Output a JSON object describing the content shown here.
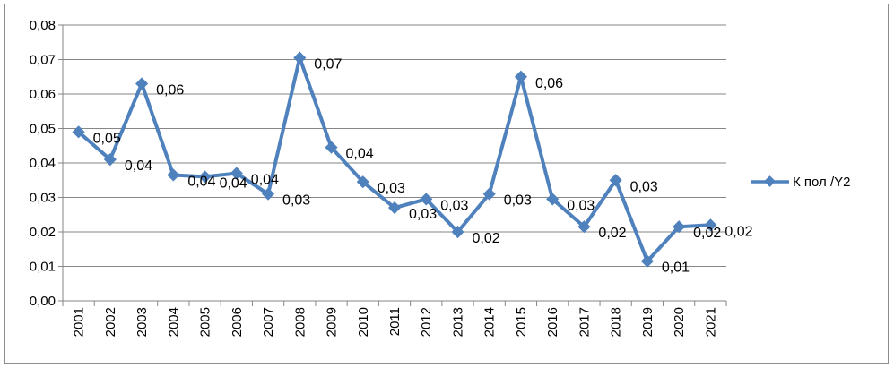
{
  "chart_data": {
    "type": "line",
    "title": "",
    "xlabel": "",
    "ylabel": "",
    "ylim": [
      0,
      0.08
    ],
    "y_ticks": [
      "0,00",
      "0,01",
      "0,02",
      "0,03",
      "0,04",
      "0,05",
      "0,06",
      "0,07",
      "0,08"
    ],
    "grid": "horizontal",
    "legend_position": "right",
    "categories": [
      "2001",
      "2002",
      "2003",
      "2004",
      "2005",
      "2006",
      "2007",
      "2008",
      "2009",
      "2010",
      "2011",
      "2012",
      "2013",
      "2014",
      "2015",
      "2016",
      "2017",
      "2018",
      "2019",
      "2020",
      "2021"
    ],
    "series": [
      {
        "name": "К пол /Y2",
        "color": "#4f81bd",
        "values": [
          0.049,
          0.041,
          0.063,
          0.0365,
          0.036,
          0.037,
          0.031,
          0.0705,
          0.0445,
          0.0345,
          0.027,
          0.0295,
          0.02,
          0.031,
          0.065,
          0.0295,
          0.0215,
          0.035,
          0.0115,
          0.0215,
          0.022
        ],
        "data_labels": [
          "0,05",
          "0,04",
          "0,06",
          "0,04",
          "0,04",
          "0,04",
          "0,03",
          "0,07",
          "0,04",
          "0,03",
          "0,03",
          "0,03",
          "0,02",
          "0,03",
          "0,06",
          "0,03",
          "0,02",
          "0,03",
          "0,01",
          "0,02",
          "0,02"
        ]
      }
    ]
  }
}
